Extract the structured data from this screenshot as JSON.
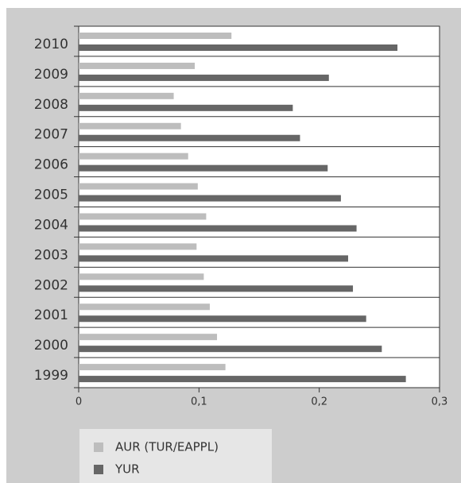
{
  "chart_data": {
    "type": "hbar",
    "categories": [
      "1999",
      "2000",
      "2001",
      "2002",
      "2003",
      "2004",
      "2005",
      "2006",
      "2007",
      "2008",
      "2009",
      "2010"
    ],
    "series": [
      {
        "name": "AUR (TUR/EAPPL)",
        "color": "#bdbdbd",
        "values": [
          0.122,
          0.115,
          0.109,
          0.104,
          0.098,
          0.106,
          0.099,
          0.091,
          0.085,
          0.079,
          0.0965,
          0.127
        ]
      },
      {
        "name": "YUR",
        "color": "#666666",
        "values": [
          0.272,
          0.252,
          0.239,
          0.228,
          0.224,
          0.231,
          0.218,
          0.207,
          0.184,
          0.178,
          0.208,
          0.265
        ]
      }
    ],
    "xlim": [
      0,
      0.3
    ],
    "xticks": [
      0,
      {
        "value": 0.1,
        "label": "0,1"
      },
      {
        "value": 0.2,
        "label": "0,2"
      },
      {
        "value": 0.3,
        "label": "0,3"
      }
    ],
    "grid": true
  }
}
